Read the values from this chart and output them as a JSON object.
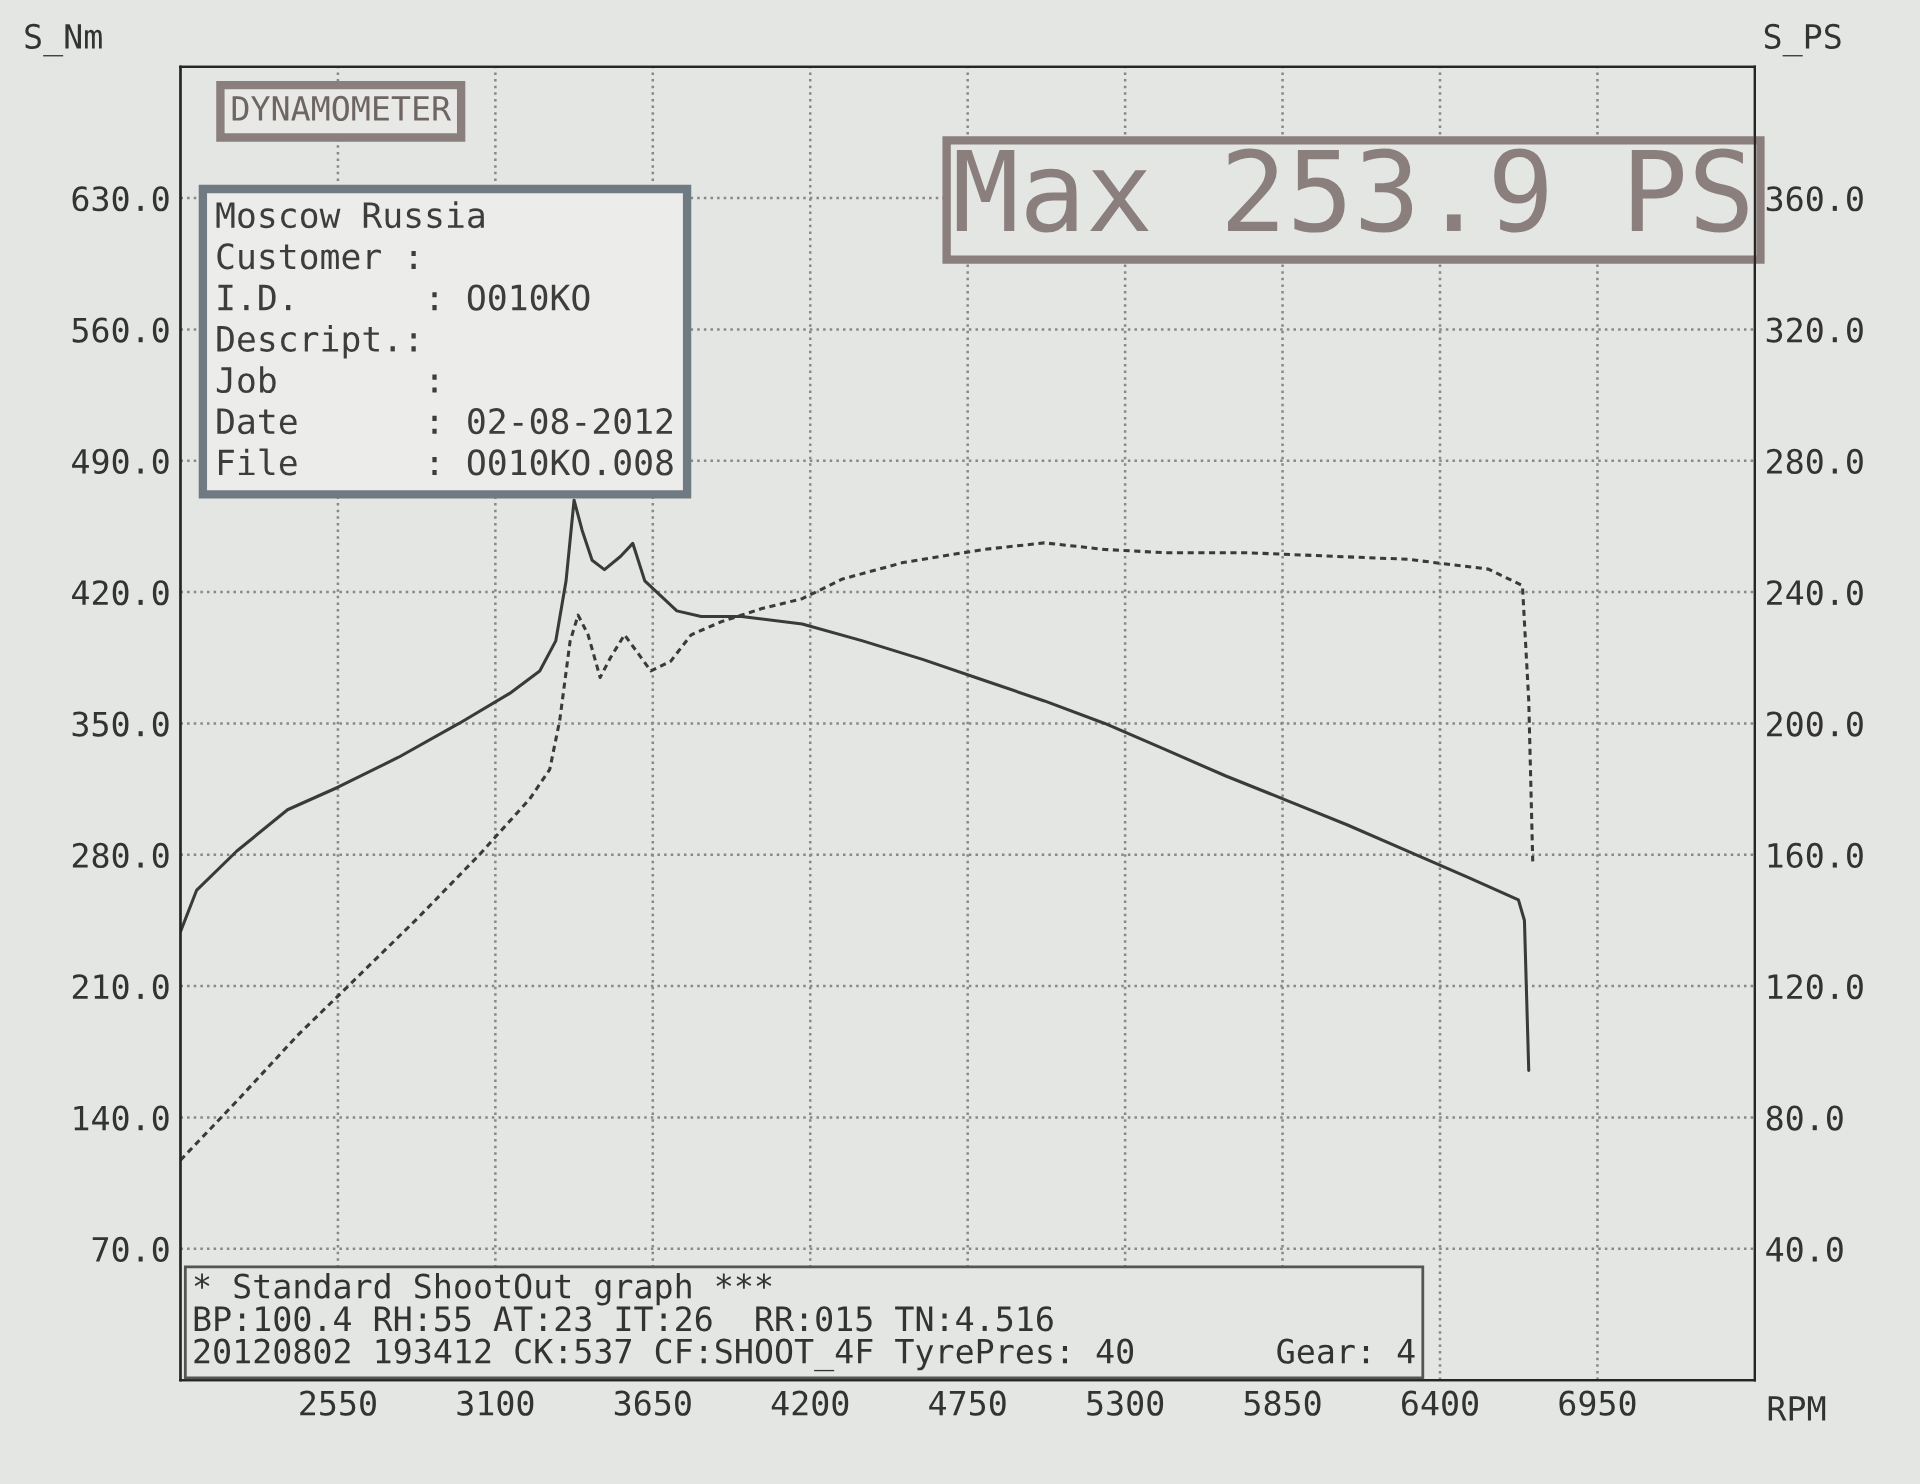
{
  "chart_data": {
    "type": "line",
    "title": "Max 253.9 PS",
    "ylabel": "S_Nm",
    "y2label": "S_PS",
    "xlabel": "RPM",
    "xlim": [
      2000,
      7500
    ],
    "xticks": [
      2550,
      3100,
      3650,
      4200,
      4750,
      5300,
      5850,
      6400,
      6950
    ],
    "ylim": [
      0,
      700
    ],
    "yticks": [
      {
        "value": 70,
        "label": "70.0"
      },
      {
        "value": 140,
        "label": "140.0"
      },
      {
        "value": 210,
        "label": "210.0"
      },
      {
        "value": 280,
        "label": "280.0"
      },
      {
        "value": 350,
        "label": "350.0"
      },
      {
        "value": 420,
        "label": "420.0"
      },
      {
        "value": 490,
        "label": "490.0"
      },
      {
        "value": 560,
        "label": "560.0"
      },
      {
        "value": 630,
        "label": "630.0"
      }
    ],
    "y2lim": [
      0,
      400
    ],
    "y2ticks": [
      {
        "value": 40,
        "label": "40.0"
      },
      {
        "value": 80,
        "label": "80.0"
      },
      {
        "value": 120,
        "label": "120.0"
      },
      {
        "value": 160,
        "label": "160.0"
      },
      {
        "value": 200,
        "label": "200.0"
      },
      {
        "value": 240,
        "label": "240.0"
      },
      {
        "value": 280,
        "label": "280.0"
      },
      {
        "value": 320,
        "label": "320.0"
      },
      {
        "value": 360,
        "label": "360.0"
      }
    ],
    "grid": true,
    "legend": false,
    "annotations": [
      "DYNAMOMETER",
      "Moscow Russia",
      "Customer :",
      "I.D.      : O010KO",
      "Descript.:",
      "Job       :",
      "Date      : 02-08-2012",
      "File      : O010KO.008",
      "* Standard ShootOut graph ***",
      "BP:100.4 RH:55 AT:23 IT:26  RR:015 TN:4.516",
      "20120802 193412 CK:537 CF:SHOOT_4F TyrePres: 40       Gear: 4"
    ],
    "series": [
      {
        "color": "#3a3a3a",
        "line_style": "solid",
        "x": [
          2000,
          2056,
          2197,
          2374,
          2550,
          2762,
          2973,
          3150,
          3255,
          3311,
          3347,
          3375,
          3403,
          3438,
          3481,
          3537,
          3580,
          3622,
          3678,
          3734,
          3819,
          3960,
          4172,
          4383,
          4595,
          4806,
          5018,
          5229,
          5441,
          5652,
          5864,
          6075,
          6287,
          6498,
          6674,
          6695,
          6710
        ],
        "values": [
          239,
          261,
          282,
          304,
          316,
          332,
          350,
          366,
          378,
          394,
          426,
          469,
          453,
          437,
          432,
          439,
          446,
          426,
          418,
          410,
          407,
          407,
          403,
          394,
          384,
          373,
          362,
          350,
          336,
          322,
          309,
          296,
          282,
          268,
          256,
          245,
          165
        ]
      },
      {
        "color": "#3a3a3a",
        "line_style": "dashed",
        "axis": "y2",
        "x": [
          2000,
          2197,
          2409,
          2621,
          2832,
          3044,
          3220,
          3290,
          3325,
          3361,
          3389,
          3424,
          3466,
          3502,
          3551,
          3593,
          3643,
          3713,
          3784,
          3890,
          4031,
          4172,
          4313,
          4524,
          4806,
          5018,
          5229,
          5441,
          5723,
          6005,
          6287,
          6569,
          6688,
          6710,
          6724
        ],
        "values": [
          67,
          85,
          105,
          123,
          141,
          160,
          177,
          186,
          201,
          225,
          233,
          227,
          214,
          220,
          227,
          222,
          216,
          219,
          227,
          231,
          235,
          238,
          244,
          249,
          253,
          255,
          253,
          252,
          252,
          251,
          250,
          247,
          242,
          207,
          158
        ]
      }
    ]
  }
}
